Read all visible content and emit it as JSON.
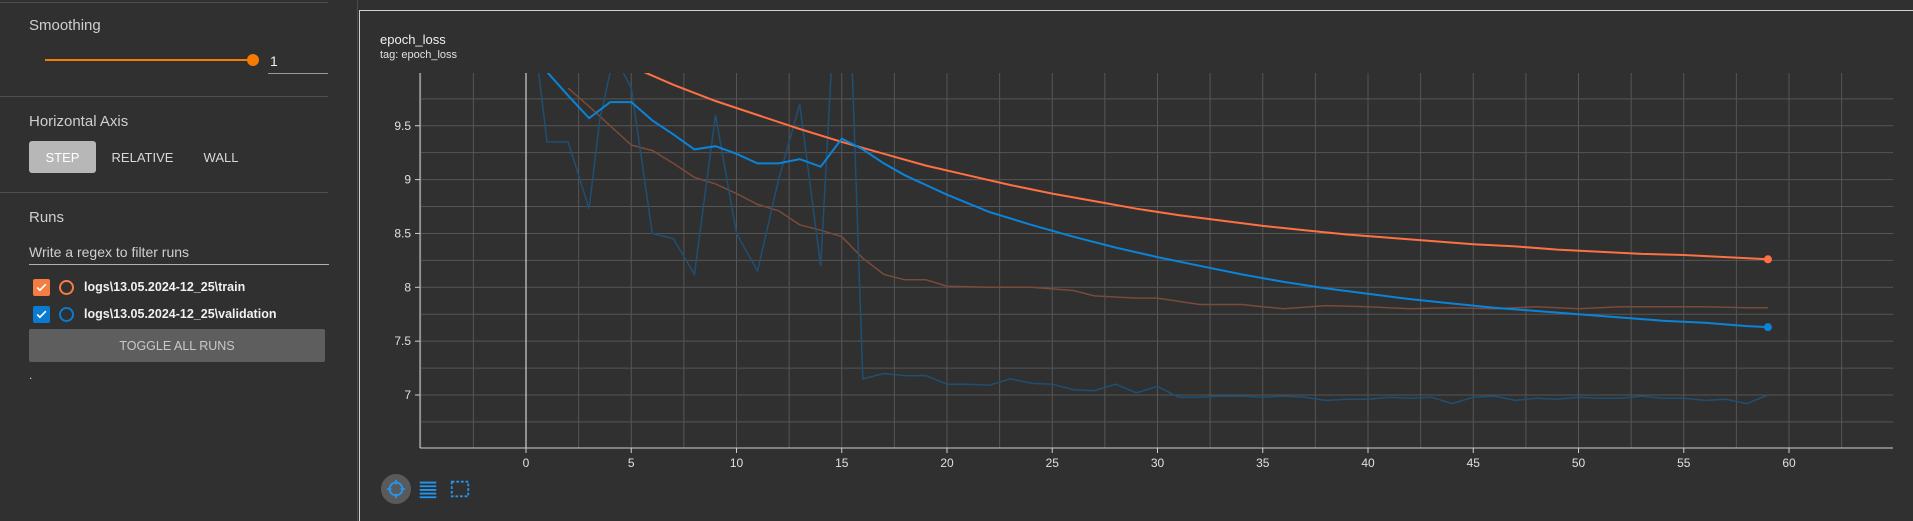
{
  "sidebar": {
    "smoothing": {
      "title": "Smoothing",
      "value": "1",
      "level": 1.0
    },
    "horizontal_axis": {
      "title": "Horizontal Axis",
      "options": [
        "STEP",
        "RELATIVE",
        "WALL"
      ],
      "selected": "STEP"
    },
    "runs": {
      "title": "Runs",
      "filter_placeholder": "Write a regex to filter runs",
      "items": [
        {
          "label": "logs\\13.05.2024-12_25\\train",
          "color": "#f57c42",
          "checked": true
        },
        {
          "label": "logs\\13.05.2024-12_25\\validation",
          "color": "#0a7bd1",
          "checked": true
        }
      ],
      "toggle_label": "TOGGLE ALL RUNS",
      "footer": "."
    }
  },
  "card": {
    "title": "epoch_loss",
    "tag": "tag: epoch_loss"
  },
  "colors": {
    "train": "#ff7043",
    "validation": "#0a84d8",
    "grid": "#555555",
    "accent": "#f57c00"
  },
  "icons": [
    "fit-domain-icon",
    "data-table-icon",
    "expand-icon"
  ],
  "chart_data": {
    "type": "line",
    "title": "epoch_loss",
    "xlim": [
      -5,
      65
    ],
    "ylim": [
      6.5,
      10
    ],
    "x_ticks": [
      0,
      5,
      10,
      15,
      20,
      25,
      30,
      35,
      40,
      45,
      50,
      55,
      60
    ],
    "y_ticks": [
      7,
      7.5,
      8,
      8.5,
      9,
      9.5
    ],
    "y_tick_labels": [
      "7",
      "7.5",
      "8",
      "8.5",
      "9",
      "9.5"
    ],
    "grid": true,
    "series": [
      {
        "name": "logs\\13.05.2024-12_25\\train",
        "color": "#ff7043",
        "smoothed": [
          [
            3,
            10.2
          ],
          [
            5,
            10.05
          ],
          [
            7,
            9.88
          ],
          [
            9,
            9.73
          ],
          [
            11,
            9.6
          ],
          [
            13,
            9.47
          ],
          [
            15,
            9.35
          ],
          [
            17,
            9.24
          ],
          [
            19,
            9.13
          ],
          [
            21,
            9.04
          ],
          [
            23,
            8.95
          ],
          [
            25,
            8.87
          ],
          [
            27,
            8.8
          ],
          [
            29,
            8.73
          ],
          [
            31,
            8.67
          ],
          [
            33,
            8.62
          ],
          [
            35,
            8.57
          ],
          [
            37,
            8.53
          ],
          [
            39,
            8.49
          ],
          [
            41,
            8.46
          ],
          [
            43,
            8.43
          ],
          [
            45,
            8.4
          ],
          [
            47,
            8.38
          ],
          [
            49,
            8.35
          ],
          [
            51,
            8.33
          ],
          [
            53,
            8.31
          ],
          [
            55,
            8.3
          ],
          [
            57,
            8.28
          ],
          [
            59,
            8.26
          ]
        ],
        "raw": [
          [
            2,
            9.85
          ],
          [
            3,
            9.68
          ],
          [
            4,
            9.5
          ],
          [
            5,
            9.32
          ],
          [
            6,
            9.27
          ],
          [
            7,
            9.15
          ],
          [
            8,
            9.02
          ],
          [
            9,
            8.96
          ],
          [
            10,
            8.87
          ],
          [
            11,
            8.77
          ],
          [
            12,
            8.71
          ],
          [
            13,
            8.58
          ],
          [
            14,
            8.53
          ],
          [
            15,
            8.47
          ],
          [
            16,
            8.27
          ],
          [
            17,
            8.12
          ],
          [
            18,
            8.07
          ],
          [
            19,
            8.07
          ],
          [
            20,
            8.01
          ],
          [
            22,
            8.0
          ],
          [
            24,
            8.0
          ],
          [
            26,
            7.97
          ],
          [
            27,
            7.92
          ],
          [
            29,
            7.9
          ],
          [
            30,
            7.9
          ],
          [
            32,
            7.84
          ],
          [
            34,
            7.84
          ],
          [
            35,
            7.82
          ],
          [
            36,
            7.8
          ],
          [
            38,
            7.83
          ],
          [
            40,
            7.82
          ],
          [
            42,
            7.8
          ],
          [
            44,
            7.81
          ],
          [
            46,
            7.8
          ],
          [
            48,
            7.82
          ],
          [
            50,
            7.8
          ],
          [
            52,
            7.82
          ],
          [
            54,
            7.82
          ],
          [
            56,
            7.82
          ],
          [
            58,
            7.81
          ],
          [
            59,
            7.81
          ]
        ]
      },
      {
        "name": "logs\\13.05.2024-12_25\\validation",
        "color": "#0a84d8",
        "smoothed": [
          [
            1,
            10.0
          ],
          [
            2,
            9.78
          ],
          [
            3,
            9.57
          ],
          [
            4,
            9.72
          ],
          [
            5,
            9.72
          ],
          [
            6,
            9.55
          ],
          [
            7,
            9.42
          ],
          [
            8,
            9.28
          ],
          [
            9,
            9.31
          ],
          [
            10,
            9.24
          ],
          [
            11,
            9.15
          ],
          [
            12,
            9.15
          ],
          [
            13,
            9.19
          ],
          [
            14,
            9.12
          ],
          [
            15,
            9.38
          ],
          [
            16,
            9.28
          ],
          [
            17,
            9.15
          ],
          [
            18,
            9.04
          ],
          [
            19,
            8.95
          ],
          [
            20,
            8.86
          ],
          [
            22,
            8.7
          ],
          [
            24,
            8.58
          ],
          [
            26,
            8.47
          ],
          [
            28,
            8.37
          ],
          [
            30,
            8.28
          ],
          [
            32,
            8.2
          ],
          [
            34,
            8.12
          ],
          [
            36,
            8.05
          ],
          [
            38,
            7.99
          ],
          [
            40,
            7.94
          ],
          [
            42,
            7.89
          ],
          [
            44,
            7.85
          ],
          [
            46,
            7.81
          ],
          [
            48,
            7.78
          ],
          [
            50,
            7.75
          ],
          [
            52,
            7.72
          ],
          [
            54,
            7.69
          ],
          [
            56,
            7.67
          ],
          [
            58,
            7.64
          ],
          [
            59,
            7.63
          ]
        ],
        "raw": [
          [
            0.6,
            10.0
          ],
          [
            1,
            9.35
          ],
          [
            2,
            9.35
          ],
          [
            3,
            8.73
          ],
          [
            3.5,
            9.55
          ],
          [
            4,
            10.0
          ],
          [
            4.6,
            10.0
          ],
          [
            5,
            9.85
          ],
          [
            6,
            8.5
          ],
          [
            7,
            8.45
          ],
          [
            8,
            8.12
          ],
          [
            9,
            9.6
          ],
          [
            10,
            8.5
          ],
          [
            11,
            8.15
          ],
          [
            12,
            9.0
          ],
          [
            13,
            9.7
          ],
          [
            14,
            8.2
          ],
          [
            14.5,
            10.0
          ],
          [
            15,
            10.0
          ],
          [
            15.5,
            10.0
          ],
          [
            16,
            7.15
          ],
          [
            17,
            7.2
          ],
          [
            18,
            7.18
          ],
          [
            19,
            7.18
          ],
          [
            20,
            7.1
          ],
          [
            21,
            7.1
          ],
          [
            22,
            7.09
          ],
          [
            23,
            7.15
          ],
          [
            24,
            7.11
          ],
          [
            25,
            7.1
          ],
          [
            26,
            7.05
          ],
          [
            27,
            7.04
          ],
          [
            28,
            7.1
          ],
          [
            29,
            7.02
          ],
          [
            30,
            7.08
          ],
          [
            31,
            6.98
          ],
          [
            32,
            6.98
          ],
          [
            33,
            6.99
          ],
          [
            34,
            6.99
          ],
          [
            35,
            6.98
          ],
          [
            36,
            6.99
          ],
          [
            37,
            6.98
          ],
          [
            38,
            6.95
          ],
          [
            39,
            6.96
          ],
          [
            40,
            6.96
          ],
          [
            41,
            6.98
          ],
          [
            42,
            6.97
          ],
          [
            43,
            6.98
          ],
          [
            44,
            6.92
          ],
          [
            45,
            6.98
          ],
          [
            46,
            6.99
          ],
          [
            47,
            6.95
          ],
          [
            48,
            6.97
          ],
          [
            49,
            6.96
          ],
          [
            50,
            6.98
          ],
          [
            51,
            6.97
          ],
          [
            52,
            6.97
          ],
          [
            53,
            6.99
          ],
          [
            54,
            6.97
          ],
          [
            55,
            6.97
          ],
          [
            56,
            6.95
          ],
          [
            57,
            6.96
          ],
          [
            58,
            6.92
          ],
          [
            59,
            7.0
          ]
        ]
      }
    ]
  }
}
